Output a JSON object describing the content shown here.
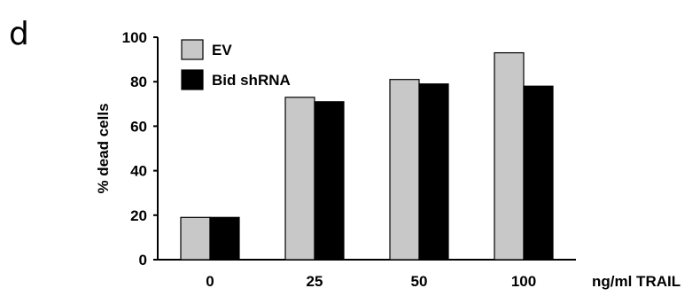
{
  "panel_label": "d",
  "colors": {
    "EV": "#c8c8c8",
    "Bid shRNA": "#000000",
    "axis": "#000000"
  },
  "chart_data": {
    "type": "bar",
    "categories": [
      "0",
      "25",
      "50",
      "100"
    ],
    "series": [
      {
        "name": "EV",
        "values": [
          19,
          73,
          81,
          93
        ]
      },
      {
        "name": "Bid shRNA",
        "values": [
          19,
          71,
          79,
          78
        ]
      }
    ],
    "xlabel": "ng/ml TRAIL",
    "ylabel": "% dead cells",
    "ylim": [
      0,
      100
    ],
    "yticks": [
      0,
      20,
      40,
      60,
      80,
      100
    ],
    "grid": false,
    "legend": "top-left"
  }
}
